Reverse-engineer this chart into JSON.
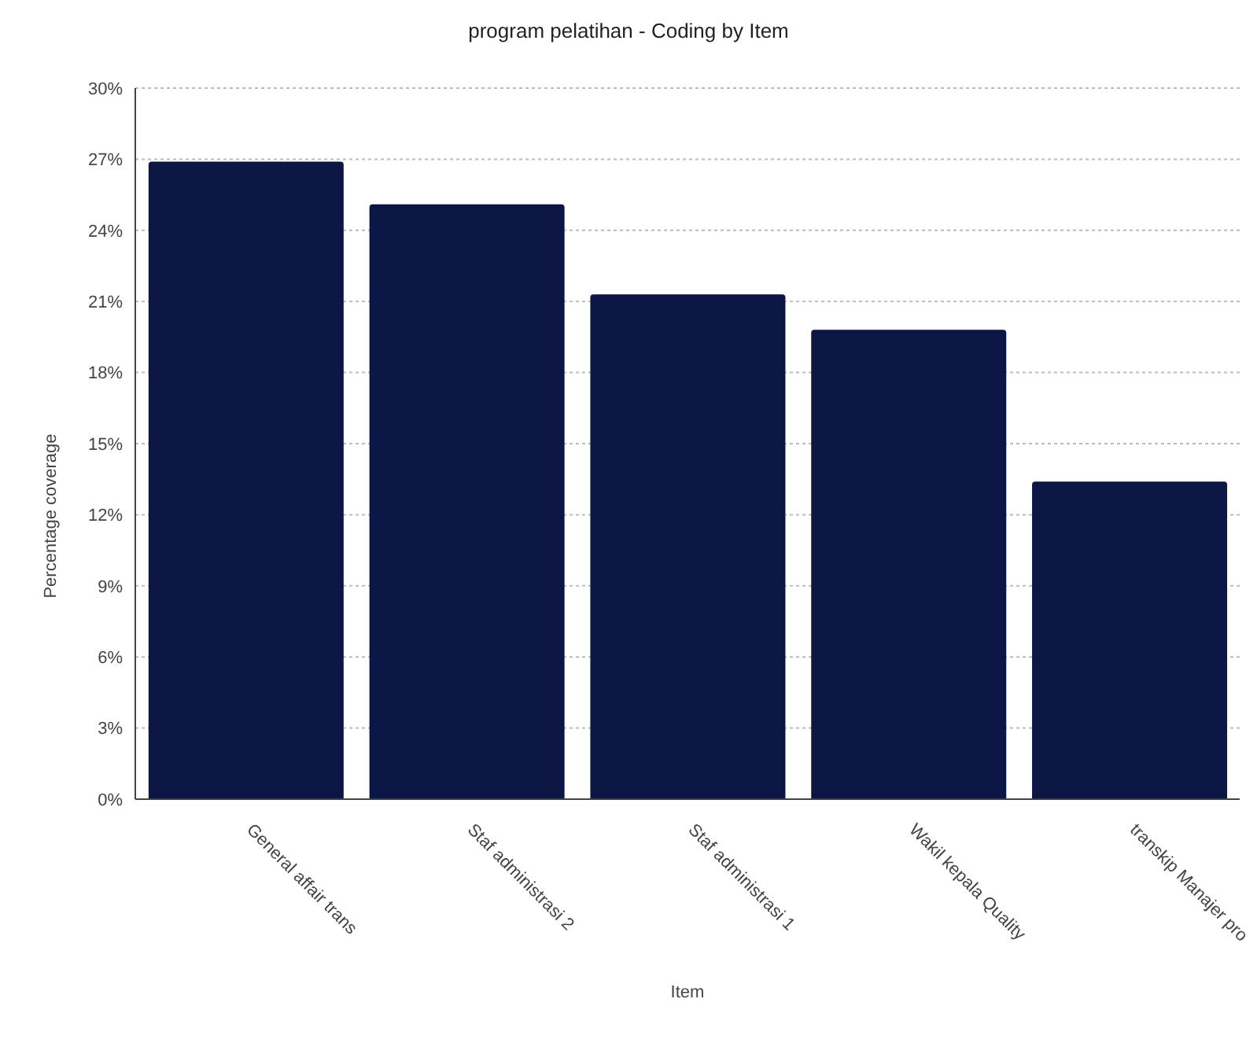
{
  "chart_data": {
    "type": "bar",
    "title": "program pelatihan - Coding by Item",
    "xlabel": "Item",
    "ylabel": "Percentage coverage",
    "categories": [
      "General affair trans",
      "Staf administrasi 2",
      "Staf administrasi 1",
      "Wakil kepala Quality",
      "transkip Manajer pro"
    ],
    "values": [
      26.9,
      25.1,
      21.3,
      19.8,
      13.4
    ],
    "color": "#0c1645",
    "ylim": [
      0,
      30
    ],
    "yticks": [
      {
        "value": 0,
        "label": "0%"
      },
      {
        "value": 3,
        "label": "3%"
      },
      {
        "value": 6,
        "label": "6%"
      },
      {
        "value": 9,
        "label": "9%"
      },
      {
        "value": 12,
        "label": "12%"
      },
      {
        "value": 15,
        "label": "15%"
      },
      {
        "value": 18,
        "label": "18%"
      },
      {
        "value": 21,
        "label": "21%"
      },
      {
        "value": 24,
        "label": "24%"
      },
      {
        "value": 27,
        "label": "27%"
      },
      {
        "value": 30,
        "label": "30%"
      }
    ],
    "grid": "y"
  }
}
